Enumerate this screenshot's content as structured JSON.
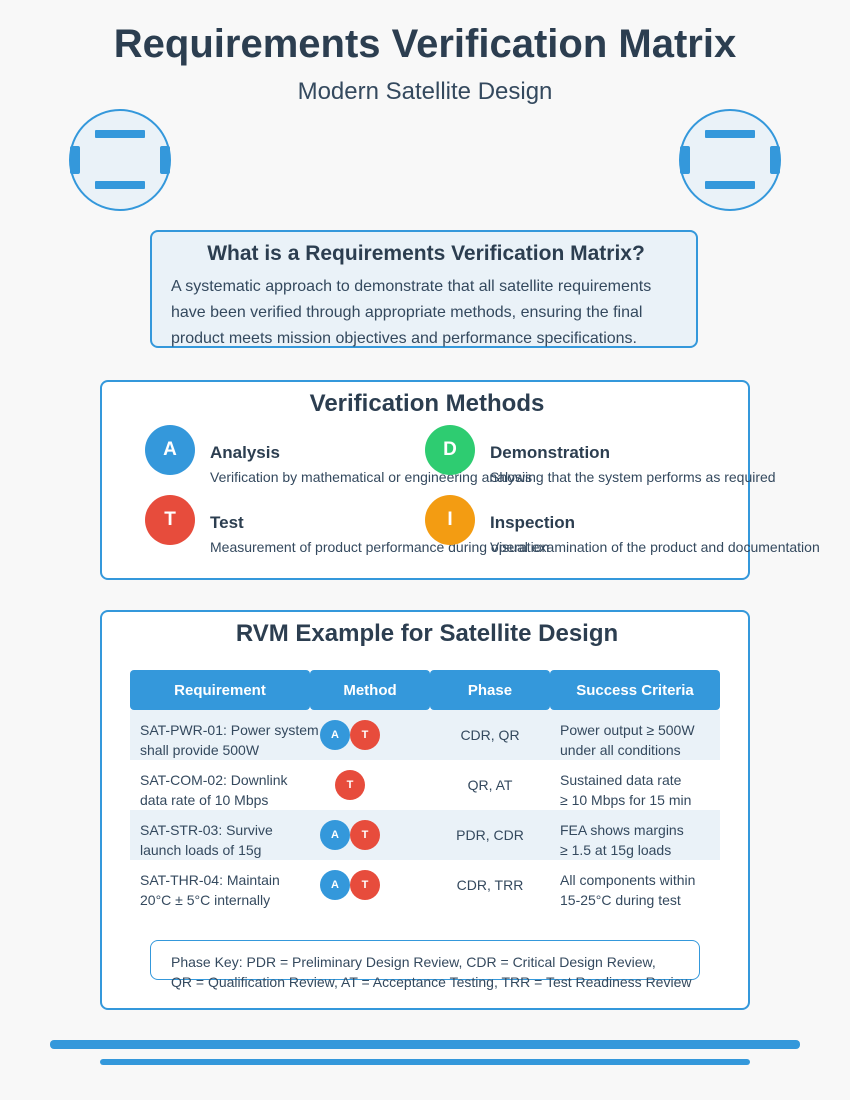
{
  "header": {
    "title": "Requirements Verification Matrix",
    "subtitle": "Modern Satellite Design"
  },
  "definition": {
    "title": "What is a Requirements Verification Matrix?",
    "lines": [
      "A systematic approach to demonstrate that all satellite requirements",
      "have been verified through appropriate methods, ensuring the final",
      "product meets mission objectives and performance specifications."
    ]
  },
  "methods": {
    "title": "Verification Methods",
    "items": [
      {
        "letter": "A",
        "name": "Analysis",
        "desc": "Verification by mathematical or engineering analysis",
        "color": "#3498db"
      },
      {
        "letter": "D",
        "name": "Demonstration",
        "desc": "Showing that the system performs as required",
        "color": "#2ecc71"
      },
      {
        "letter": "T",
        "name": "Test",
        "desc": "Measurement of product performance during operation",
        "color": "#e74c3c"
      },
      {
        "letter": "I",
        "name": "Inspection",
        "desc": "Visual examination of the product and documentation",
        "color": "#f39c12"
      }
    ]
  },
  "rvm": {
    "title": "RVM Example for Satellite Design",
    "headers": [
      "Requirement",
      "Method",
      "Phase",
      "Success Criteria"
    ],
    "rows": [
      {
        "req": [
          "SAT-PWR-01: Power system",
          "shall provide 500W"
        ],
        "methods": [
          "A",
          "T"
        ],
        "phase": "CDR, QR",
        "criteria": [
          "Power output ≥ 500W",
          "under all conditions"
        ]
      },
      {
        "req": [
          "SAT-COM-02: Downlink",
          "data rate of 10 Mbps"
        ],
        "methods": [
          "T"
        ],
        "phase": "QR, AT",
        "criteria": [
          "Sustained data rate",
          "≥ 10 Mbps for 15 min"
        ]
      },
      {
        "req": [
          "SAT-STR-03: Survive",
          "launch loads of 15g"
        ],
        "methods": [
          "A",
          "T"
        ],
        "phase": "PDR, CDR",
        "criteria": [
          "FEA shows margins",
          "≥ 1.5 at 15g loads"
        ]
      },
      {
        "req": [
          "SAT-THR-04: Maintain",
          "20°C ± 5°C internally"
        ],
        "methods": [
          "A",
          "T"
        ],
        "phase": "CDR, TRR",
        "criteria": [
          "All components within",
          "15-25°C during test"
        ]
      }
    ],
    "key_lines": [
      "Phase Key: PDR = Preliminary Design Review, CDR = Critical Design Review,",
      "QR = Qualification Review, AT = Acceptance Testing, TRR = Test Readiness Review"
    ]
  },
  "colors": {
    "accent": "#3498db",
    "header_bg": "#3498db",
    "stripe": "#eaf2f8",
    "text": "#2c3e50"
  }
}
